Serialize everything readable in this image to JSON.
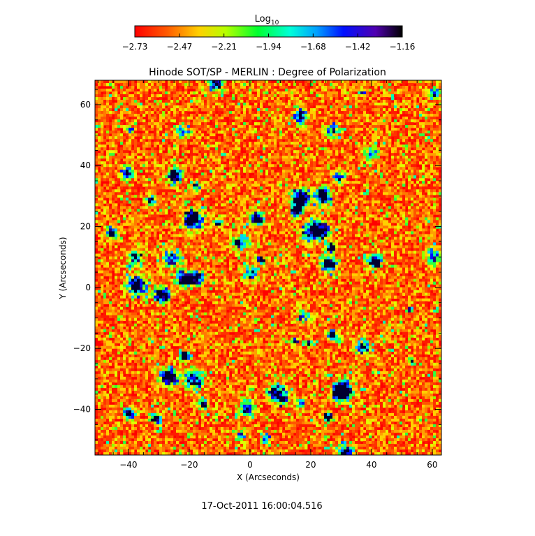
{
  "chart_data": {
    "type": "heatmap",
    "title": "Hinode SOT/SP - MERLIN : Degree of Polarization",
    "xlabel": "X (Arcseconds)",
    "ylabel": "Y (Arcseconds)",
    "xlim": [
      -51,
      63
    ],
    "ylim": [
      -55,
      68
    ],
    "x_ticks": [
      -40,
      -20,
      0,
      20,
      40,
      60
    ],
    "y_ticks": [
      -40,
      -20,
      0,
      20,
      40,
      60
    ],
    "colorbar": {
      "label": "Log",
      "label_sub": "10",
      "ticks": [
        "-2.73",
        "-2.47",
        "-2.21",
        "-1.94",
        "-1.68",
        "-1.42",
        "-1.16"
      ],
      "range": [
        -2.73,
        -1.16
      ],
      "colormap": "rainbow-reversed (red→yellow→green→cyan→blue→black)"
    },
    "timestamp": "17-Oct-2011 16:00:04.516",
    "colors": {
      "background": "#ffffff",
      "low": "#ff0000",
      "high": "#000000"
    }
  }
}
